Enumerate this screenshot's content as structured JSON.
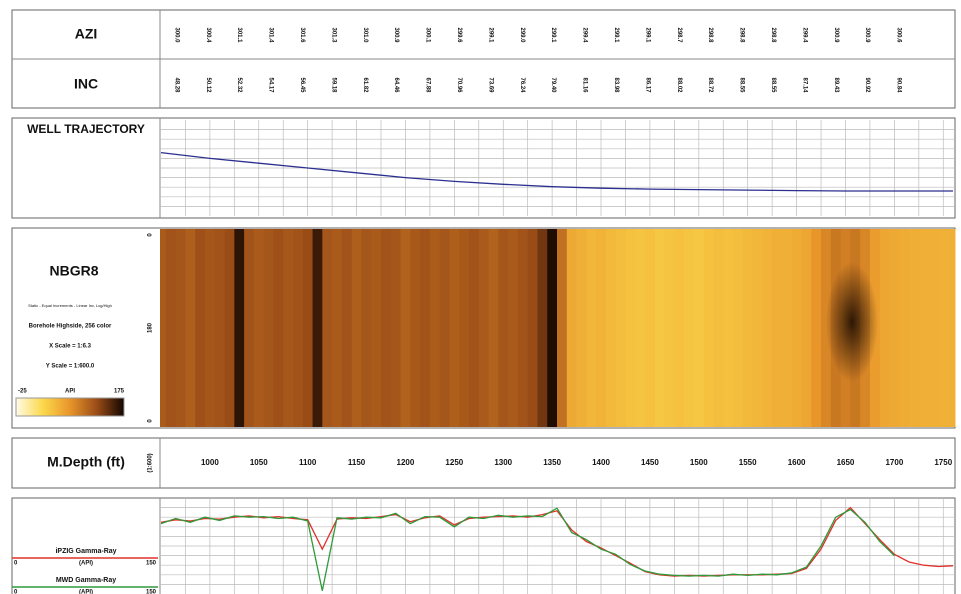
{
  "survey": {
    "azi_label": "AZI",
    "inc_label": "INC",
    "azi": [
      "300.0",
      "300.4",
      "301.1",
      "301.4",
      "301.6",
      "301.3",
      "301.0",
      "300.9",
      "300.1",
      "299.6",
      "299.1",
      "299.0",
      "299.1",
      "299.4",
      "299.1",
      "299.1",
      "298.7",
      "298.8",
      "298.8",
      "298.8",
      "299.4",
      "300.9",
      "300.9",
      "300.6"
    ],
    "inc": [
      "48.28",
      "50.12",
      "52.32",
      "54.17",
      "56.45",
      "59.18",
      "61.82",
      "64.46",
      "67.88",
      "70.96",
      "73.69",
      "76.24",
      "79.40",
      "81.16",
      "83.98",
      "86.17",
      "88.02",
      "88.72",
      "88.55",
      "88.55",
      "87.14",
      "89.43",
      "90.92",
      "90.84"
    ]
  },
  "chart_data": [
    {
      "type": "line",
      "title": "WELL TRAJECTORY",
      "x": [
        950,
        1000,
        1050,
        1100,
        1150,
        1200,
        1250,
        1300,
        1350,
        1400,
        1450,
        1500,
        1550,
        1600,
        1650,
        1700,
        1760
      ],
      "values": [
        34,
        40,
        45,
        50,
        55,
        60,
        64,
        67,
        69.5,
        71,
        72,
        72.5,
        73,
        73.5,
        74,
        74,
        74
      ],
      "color": "#2b2f8f",
      "ylim": [
        100,
        0
      ],
      "yticks": [
        10,
        20,
        30,
        40,
        50,
        60,
        70,
        80,
        90
      ],
      "grid": true
    },
    {
      "type": "image",
      "title": "NBGR8",
      "subtitle": "Static - Equal Increments - Linear Inv, Log/High",
      "notes": [
        "Borehole Highside, 256 color",
        "X Scale = 1:6.3",
        "Y Scale = 1:600.0"
      ],
      "ylim": [
        0,
        360
      ],
      "yticks": [
        0,
        180,
        {
          "value": 360,
          "label": "0"
        }
      ],
      "colorbar": {
        "label": "API",
        "ticks": [
          -25,
          175
        ],
        "colors": [
          "#fffbe6",
          "#fbd84a",
          "#e8952a",
          "#9a4c17",
          "#120600"
        ]
      },
      "x": [
        950,
        960,
        970,
        980,
        990,
        1000,
        1010,
        1020,
        1030,
        1040,
        1050,
        1060,
        1070,
        1080,
        1090,
        1100,
        1110,
        1120,
        1130,
        1140,
        1150,
        1160,
        1170,
        1180,
        1190,
        1200,
        1210,
        1220,
        1230,
        1240,
        1250,
        1260,
        1270,
        1280,
        1290,
        1300,
        1310,
        1320,
        1330,
        1340,
        1350,
        1360,
        1370,
        1380,
        1390,
        1400,
        1410,
        1420,
        1430,
        1440,
        1450,
        1460,
        1470,
        1480,
        1490,
        1500,
        1510,
        1520,
        1530,
        1540,
        1550,
        1560,
        1570,
        1580,
        1590,
        1600,
        1610,
        1620,
        1630,
        1640,
        1650,
        1660,
        1670,
        1680,
        1690,
        1700,
        1710,
        1720,
        1730,
        1740,
        1750,
        1760
      ],
      "values": [
        115,
        120,
        118,
        112,
        122,
        118,
        120,
        125,
        165,
        120,
        115,
        118,
        122,
        117,
        120,
        125,
        160,
        118,
        115,
        120,
        112,
        118,
        115,
        120,
        118,
        110,
        116,
        120,
        114,
        118,
        112,
        116,
        120,
        115,
        110,
        118,
        115,
        120,
        125,
        140,
        170,
        100,
        60,
        55,
        50,
        52,
        48,
        45,
        42,
        40,
        42,
        38,
        40,
        42,
        40,
        38,
        42,
        45,
        43,
        45,
        48,
        50,
        52,
        55,
        55,
        58,
        62,
        75,
        85,
        95,
        90,
        95,
        85,
        70,
        62,
        60,
        58,
        56,
        55,
        55,
        54,
        55
      ]
    },
    {
      "type": "axis",
      "title": "M.Depth (ft)",
      "scale": "(1:600)",
      "xlim": [
        949,
        1762
      ],
      "xticks": [
        1000,
        1050,
        1100,
        1150,
        1200,
        1250,
        1300,
        1350,
        1400,
        1450,
        1500,
        1550,
        1600,
        1650,
        1700,
        1750
      ],
      "minor_ticks": [
        975,
        1000,
        1025,
        1050,
        1075,
        1100,
        1125,
        1150,
        1175,
        1200,
        1225,
        1250,
        1275,
        1300,
        1325,
        1350,
        1375,
        1400,
        1425,
        1450,
        1475,
        1500,
        1525,
        1550,
        1575,
        1600,
        1625,
        1650,
        1675,
        1700,
        1725,
        1750
      ]
    },
    {
      "type": "line",
      "x": [
        950,
        965,
        980,
        995,
        1010,
        1025,
        1040,
        1055,
        1070,
        1085,
        1100,
        1115,
        1130,
        1145,
        1160,
        1175,
        1190,
        1205,
        1220,
        1235,
        1250,
        1265,
        1280,
        1295,
        1310,
        1325,
        1340,
        1355,
        1370,
        1385,
        1400,
        1415,
        1430,
        1445,
        1460,
        1475,
        1490,
        1505,
        1520,
        1535,
        1550,
        1565,
        1580,
        1595,
        1610,
        1625,
        1640,
        1655,
        1670,
        1685,
        1700,
        1715,
        1730,
        1745,
        1760
      ],
      "series": [
        {
          "name": "iPZIG Gamma-Ray",
          "unit": "(API)",
          "color": "#e0302a",
          "values": [
            112,
            116,
            114,
            118,
            117,
            120,
            122,
            119,
            121,
            118,
            116,
            70,
            117,
            119,
            118,
            121,
            124,
            113,
            119,
            122,
            108,
            118,
            120,
            121,
            122,
            120,
            124,
            130,
            100,
            82,
            72,
            60,
            48,
            35,
            30,
            28,
            29,
            28,
            29,
            30,
            30,
            30,
            31,
            32,
            40,
            70,
            115,
            135,
            110,
            85,
            62,
            50,
            45,
            43,
            44
          ]
        },
        {
          "name": "MWD Gamma-Ray",
          "unit": "(API)",
          "color": "#2e9a3a",
          "values": [
            110,
            118,
            112,
            120,
            115,
            122,
            120,
            121,
            118,
            120,
            114,
            5,
            119,
            117,
            120,
            119,
            126,
            110,
            121,
            120,
            105,
            120,
            118,
            123,
            120,
            122,
            121,
            134,
            96,
            85,
            70,
            62,
            46,
            36,
            31,
            29,
            28,
            29,
            28,
            31,
            29,
            31,
            30,
            33,
            42,
            75,
            120,
            132,
            112,
            82,
            60,
            null,
            null,
            null,
            null
          ]
        }
      ],
      "ylim": [
        0,
        150
      ],
      "yticks": [
        15,
        30,
        45,
        60,
        75,
        90,
        105,
        120,
        135
      ],
      "grid": true
    }
  ]
}
